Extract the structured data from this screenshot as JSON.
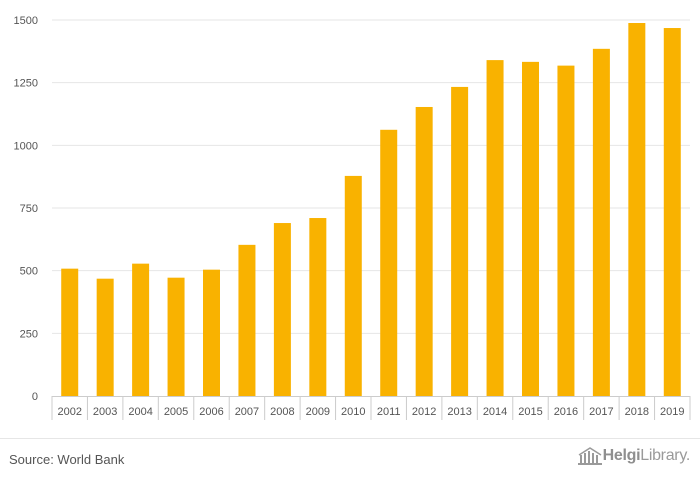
{
  "chart_data": {
    "type": "bar",
    "categories": [
      "2002",
      "2003",
      "2004",
      "2005",
      "2006",
      "2007",
      "2008",
      "2009",
      "2010",
      "2011",
      "2012",
      "2013",
      "2014",
      "2015",
      "2016",
      "2017",
      "2018",
      "2019"
    ],
    "values": [
      508,
      468,
      528,
      472,
      504,
      603,
      690,
      710,
      878,
      1062,
      1153,
      1233,
      1340,
      1333,
      1318,
      1385,
      1488,
      1468
    ],
    "title": "",
    "xlabel": "",
    "ylabel": "",
    "ylim": [
      0,
      1500
    ],
    "yticks": [
      0,
      250,
      500,
      750,
      1000,
      1250,
      1500
    ],
    "ytick_labels": [
      "0",
      "250",
      "500",
      "750",
      "1000",
      "1250",
      "1500"
    ],
    "grid": true,
    "legend": "none",
    "bar_color": "#f9b200"
  },
  "footer": {
    "source": "Source: World Bank",
    "logo_bold": "Helgi",
    "logo_regular": "Library",
    "logo_dot": "."
  },
  "colors": {
    "bar": "#f9b200",
    "grid": "#e6e6e6",
    "axis": "#cccccc",
    "text": "#555555"
  }
}
